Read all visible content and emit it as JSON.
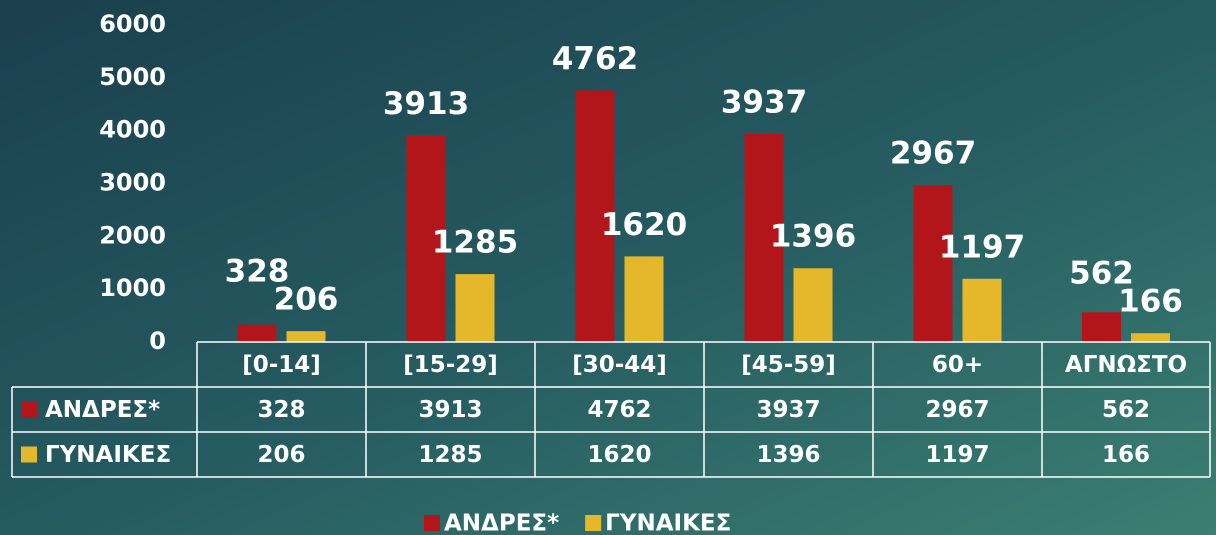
{
  "chart_data": {
    "type": "bar",
    "categories": [
      "[0-14]",
      "[15-29]",
      "[30-44]",
      "[45-59]",
      "60+",
      "ΑΓΝΩΣΤΟ"
    ],
    "series": [
      {
        "name": "ΑΝΔΡΕΣ*",
        "color": "#b3161a",
        "values": [
          328,
          3913,
          4762,
          3937,
          2967,
          562
        ]
      },
      {
        "name": "ΓΥΝΑΙΚΕΣ",
        "color": "#e5b82b",
        "values": [
          206,
          1285,
          1620,
          1396,
          1197,
          166
        ]
      }
    ],
    "ylim": [
      0,
      6000
    ],
    "yticks": [
      0,
      1000,
      2000,
      3000,
      4000,
      5000,
      6000
    ],
    "grid": false,
    "legend": "bottom",
    "data_table": true
  }
}
